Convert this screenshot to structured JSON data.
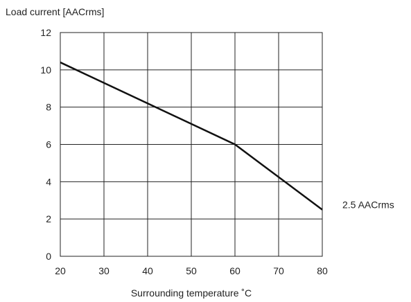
{
  "chart_data": {
    "type": "line",
    "ylabel": "Load current [AACrms]",
    "xlabel": "Surrounding temperature ˚C",
    "xlim": [
      20,
      80
    ],
    "ylim": [
      0,
      12
    ],
    "x_ticks": [
      "20",
      "30",
      "40",
      "50",
      "60",
      "70",
      "80"
    ],
    "y_ticks": [
      "0",
      "2",
      "4",
      "6",
      "8",
      "10",
      "12"
    ],
    "grid": true,
    "series": [
      {
        "x": [
          20,
          60,
          80
        ],
        "y": [
          10.4,
          6.0,
          2.5
        ]
      }
    ],
    "annotations": [
      {
        "text": "2.5 AACrms",
        "x": 80,
        "y": 2.5
      }
    ],
    "colors": {
      "line": "#111111",
      "grid": "#222222",
      "frame": "#222222"
    }
  }
}
